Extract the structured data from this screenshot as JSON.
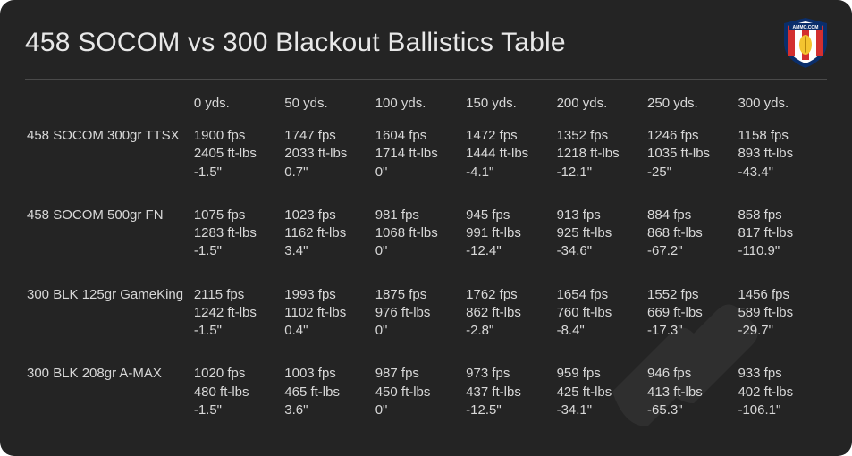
{
  "title": "458 SOCOM vs 300 Blackout Ballistics Table",
  "logo": {
    "label": "AMMO.COM"
  },
  "colors": {
    "card_bg": "#242424",
    "text": "#d8d8d8",
    "title_text": "#e8e8e8",
    "divider": "#4a4a4a",
    "logo_red": "#d32f2f",
    "logo_white": "#ffffff",
    "logo_blue": "#0a2e6b"
  },
  "table": {
    "type": "table",
    "columns": [
      "0 yds.",
      "50 yds.",
      "100 yds.",
      "150 yds.",
      "200 yds.",
      "250 yds.",
      "300 yds."
    ],
    "metrics": [
      "velocity_fps",
      "energy_ftlbs",
      "drop_in"
    ],
    "units": {
      "velocity_fps": "fps",
      "energy_ftlbs": "ft-lbs",
      "drop_in": "\""
    },
    "rows": [
      {
        "label": "458 SOCOM 300gr TTSX",
        "cells": [
          {
            "velocity_fps": 1900,
            "energy_ftlbs": 2405,
            "drop_in": -1.5
          },
          {
            "velocity_fps": 1747,
            "energy_ftlbs": 2033,
            "drop_in": 0.7
          },
          {
            "velocity_fps": 1604,
            "energy_ftlbs": 1714,
            "drop_in": 0
          },
          {
            "velocity_fps": 1472,
            "energy_ftlbs": 1444,
            "drop_in": -4.1
          },
          {
            "velocity_fps": 1352,
            "energy_ftlbs": 1218,
            "drop_in": -12.1
          },
          {
            "velocity_fps": 1246,
            "energy_ftlbs": 1035,
            "drop_in": -25
          },
          {
            "velocity_fps": 1158,
            "energy_ftlbs": 893,
            "drop_in": -43.4
          }
        ]
      },
      {
        "label": "458 SOCOM 500gr FN",
        "cells": [
          {
            "velocity_fps": 1075,
            "energy_ftlbs": 1283,
            "drop_in": -1.5
          },
          {
            "velocity_fps": 1023,
            "energy_ftlbs": 1162,
            "drop_in": 3.4
          },
          {
            "velocity_fps": 981,
            "energy_ftlbs": 1068,
            "drop_in": 0
          },
          {
            "velocity_fps": 945,
            "energy_ftlbs": 991,
            "drop_in": -12.4
          },
          {
            "velocity_fps": 913,
            "energy_ftlbs": 925,
            "drop_in": -34.6
          },
          {
            "velocity_fps": 884,
            "energy_ftlbs": 868,
            "drop_in": -67.2
          },
          {
            "velocity_fps": 858,
            "energy_ftlbs": 817,
            "drop_in": -110.9
          }
        ]
      },
      {
        "label": "300 BLK 125gr GameKing",
        "cells": [
          {
            "velocity_fps": 2115,
            "energy_ftlbs": 1242,
            "drop_in": -1.5
          },
          {
            "velocity_fps": 1993,
            "energy_ftlbs": 1102,
            "drop_in": 0.4
          },
          {
            "velocity_fps": 1875,
            "energy_ftlbs": 976,
            "drop_in": 0
          },
          {
            "velocity_fps": 1762,
            "energy_ftlbs": 862,
            "drop_in": -2.8
          },
          {
            "velocity_fps": 1654,
            "energy_ftlbs": 760,
            "drop_in": -8.4
          },
          {
            "velocity_fps": 1552,
            "energy_ftlbs": 669,
            "drop_in": -17.3
          },
          {
            "velocity_fps": 1456,
            "energy_ftlbs": 589,
            "drop_in": -29.7
          }
        ]
      },
      {
        "label": "300 BLK 208gr A-MAX",
        "cells": [
          {
            "velocity_fps": 1020,
            "energy_ftlbs": 480,
            "drop_in": -1.5
          },
          {
            "velocity_fps": 1003,
            "energy_ftlbs": 465,
            "drop_in": 3.6
          },
          {
            "velocity_fps": 987,
            "energy_ftlbs": 450,
            "drop_in": 0
          },
          {
            "velocity_fps": 973,
            "energy_ftlbs": 437,
            "drop_in": -12.5
          },
          {
            "velocity_fps": 959,
            "energy_ftlbs": 425,
            "drop_in": -34.1
          },
          {
            "velocity_fps": 946,
            "energy_ftlbs": 413,
            "drop_in": -65.3
          },
          {
            "velocity_fps": 933,
            "energy_ftlbs": 402,
            "drop_in": -106.1
          }
        ]
      }
    ]
  }
}
